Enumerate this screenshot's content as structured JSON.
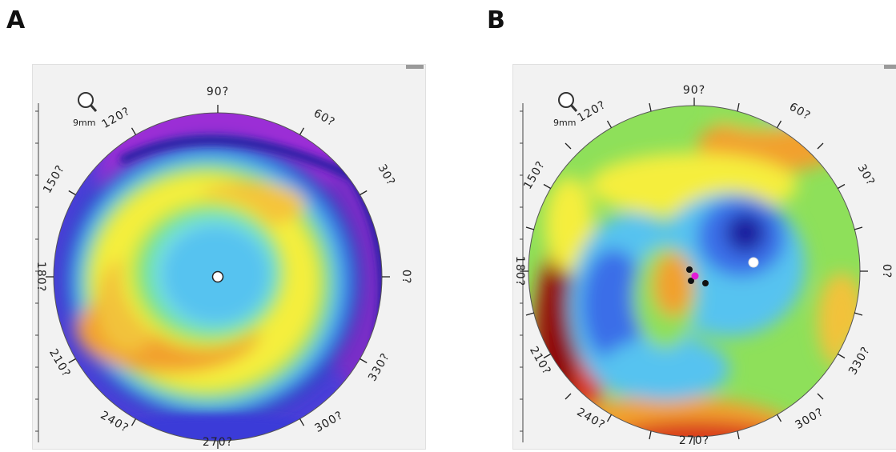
{
  "panels": [
    {
      "id": "a",
      "letter": "A",
      "scale_label": "9mm",
      "labels": [
        "90?",
        "60?",
        "30?",
        "0?",
        "330?",
        "300?",
        "270?",
        "240?",
        "210?",
        "180?",
        "150?",
        "120?"
      ]
    },
    {
      "id": "b",
      "letter": "B",
      "scale_label": "9mm",
      "labels": [
        "90?",
        "60?",
        "30?",
        "0?",
        "330?",
        "300?",
        "270?",
        "240?",
        "210?",
        "180?",
        "150?",
        "120?"
      ]
    }
  ],
  "colors": {
    "purple": "#9b2fd6",
    "dark_blue": "#1a1a9e",
    "blue": "#3a6ee8",
    "light_blue": "#57c3f0",
    "cyan": "#7de3dc",
    "green": "#8ee05a",
    "yellow": "#f5ee3c",
    "orange": "#f2a02e",
    "red": "#d93a1f",
    "dark_red": "#8e1010",
    "magenta_marker": "#e21bd6"
  }
}
